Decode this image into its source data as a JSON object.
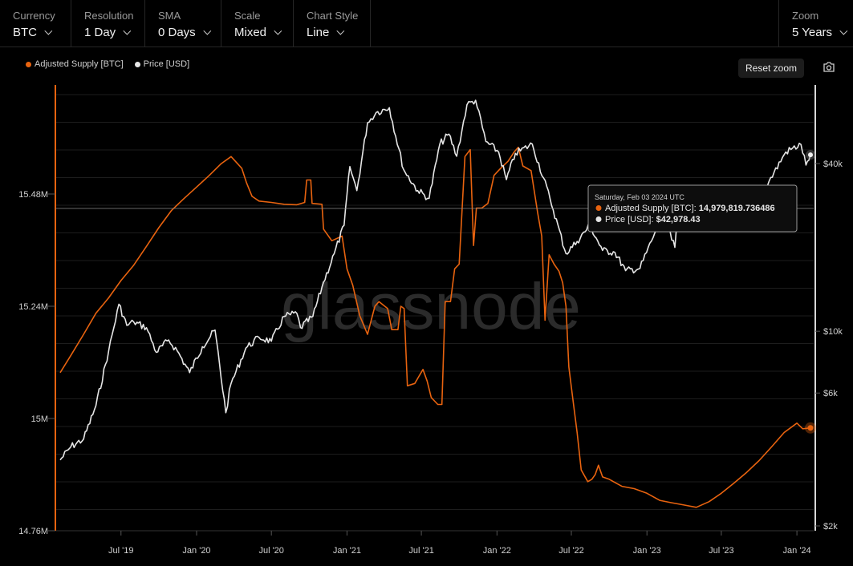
{
  "toolbar": {
    "currency": {
      "label": "Currency",
      "value": "BTC"
    },
    "resolution": {
      "label": "Resolution",
      "value": "1 Day"
    },
    "sma": {
      "label": "SMA",
      "value": "0 Days"
    },
    "scale": {
      "label": "Scale",
      "value": "Mixed"
    },
    "chart_style": {
      "label": "Chart Style",
      "value": "Line"
    },
    "zoom": {
      "label": "Zoom",
      "value": "5 Years"
    }
  },
  "reset_zoom_label": "Reset zoom",
  "icons": {
    "camera": "camera-icon",
    "chevron": "chevron-down-icon"
  },
  "watermark": "glassnode",
  "colors": {
    "supply": "#e8630f",
    "price": "#e6e6e6",
    "background": "#000000"
  },
  "tooltip": {
    "date": "Saturday, Feb 03 2024 UTC",
    "rows": [
      {
        "label": "Adjusted Supply [BTC]: ",
        "value": "14,979,819.736486"
      },
      {
        "label": "Price [USD]: ",
        "value": "$42,978.43"
      }
    ]
  },
  "chart_data": {
    "type": "line",
    "title": "",
    "x_ticks": [
      "Jul '19",
      "Jan '20",
      "Jul '20",
      "Jan '21",
      "Jul '21",
      "Jan '22",
      "Jul '22",
      "Jan '23",
      "Jul '23",
      "Jan '24"
    ],
    "x_tick_dates": [
      "2019-07-01",
      "2020-01-01",
      "2020-07-01",
      "2021-01-01",
      "2021-07-01",
      "2022-01-01",
      "2022-07-01",
      "2023-01-01",
      "2023-07-01",
      "2024-01-01"
    ],
    "xlim": [
      "2019-02-03",
      "2024-02-03"
    ],
    "y_left": {
      "ticks": [
        "14.76M",
        "15M",
        "15.24M",
        "15.48M"
      ],
      "tick_values": [
        14760000,
        15000000,
        15240000,
        15480000
      ],
      "ylim": [
        14760000,
        15600000
      ],
      "scale": "linear"
    },
    "y_right": {
      "ticks": [
        "$2k",
        "$6k",
        "$10k",
        "$40k"
      ],
      "tick_values": [
        2000,
        6000,
        10000,
        40000
      ],
      "scale": "log"
    },
    "grid": true,
    "legend_position": "top-left",
    "series": [
      {
        "name": "Adjusted Supply [BTC]",
        "axis": "left",
        "color": "#e8630f",
        "points": [
          [
            "2019-02-03",
            15098000
          ],
          [
            "2019-03-01",
            15135000
          ],
          [
            "2019-04-01",
            15180000
          ],
          [
            "2019-05-01",
            15225000
          ],
          [
            "2019-06-01",
            15258000
          ],
          [
            "2019-07-01",
            15295000
          ],
          [
            "2019-08-01",
            15328000
          ],
          [
            "2019-09-01",
            15368000
          ],
          [
            "2019-10-01",
            15408000
          ],
          [
            "2019-11-01",
            15445000
          ],
          [
            "2019-12-01",
            15470000
          ],
          [
            "2020-01-01",
            15495000
          ],
          [
            "2020-02-01",
            15520000
          ],
          [
            "2020-03-01",
            15545000
          ],
          [
            "2020-03-25",
            15560000
          ],
          [
            "2020-04-20",
            15535000
          ],
          [
            "2020-05-01",
            15505000
          ],
          [
            "2020-05-15",
            15475000
          ],
          [
            "2020-06-01",
            15465000
          ],
          [
            "2020-07-01",
            15462000
          ],
          [
            "2020-08-01",
            15458000
          ],
          [
            "2020-09-01",
            15457000
          ],
          [
            "2020-09-20",
            15462000
          ],
          [
            "2020-09-25",
            15510000
          ],
          [
            "2020-10-05",
            15510000
          ],
          [
            "2020-10-08",
            15460000
          ],
          [
            "2020-11-01",
            15458000
          ],
          [
            "2020-11-05",
            15405000
          ],
          [
            "2020-11-25",
            15380000
          ],
          [
            "2020-12-20",
            15390000
          ],
          [
            "2021-01-01",
            15320000
          ],
          [
            "2021-01-15",
            15285000
          ],
          [
            "2021-02-01",
            15220000
          ],
          [
            "2021-02-20",
            15180000
          ],
          [
            "2021-03-10",
            15240000
          ],
          [
            "2021-03-20",
            15250000
          ],
          [
            "2021-04-10",
            15235000
          ],
          [
            "2021-04-20",
            15190000
          ],
          [
            "2021-05-05",
            15190000
          ],
          [
            "2021-05-12",
            15240000
          ],
          [
            "2021-05-20",
            15235000
          ],
          [
            "2021-05-28",
            15070000
          ],
          [
            "2021-06-15",
            15075000
          ],
          [
            "2021-06-25",
            15090000
          ],
          [
            "2021-07-05",
            15105000
          ],
          [
            "2021-07-15",
            15080000
          ],
          [
            "2021-07-25",
            15045000
          ],
          [
            "2021-08-10",
            15030000
          ],
          [
            "2021-08-20",
            15030000
          ],
          [
            "2021-08-28",
            15250000
          ],
          [
            "2021-09-10",
            15250000
          ],
          [
            "2021-09-20",
            15320000
          ],
          [
            "2021-10-01",
            15330000
          ],
          [
            "2021-10-15",
            15560000
          ],
          [
            "2021-10-28",
            15575000
          ],
          [
            "2021-11-05",
            15370000
          ],
          [
            "2021-11-12",
            15450000
          ],
          [
            "2021-11-25",
            15450000
          ],
          [
            "2021-12-10",
            15460000
          ],
          [
            "2021-12-25",
            15520000
          ],
          [
            "2022-01-10",
            15535000
          ],
          [
            "2022-01-28",
            15550000
          ],
          [
            "2022-02-12",
            15570000
          ],
          [
            "2022-02-22",
            15580000
          ],
          [
            "2022-03-05",
            15540000
          ],
          [
            "2022-03-25",
            15530000
          ],
          [
            "2022-04-10",
            15440000
          ],
          [
            "2022-04-20",
            15390000
          ],
          [
            "2022-04-28",
            15210000
          ],
          [
            "2022-05-08",
            15350000
          ],
          [
            "2022-05-20",
            15330000
          ],
          [
            "2022-06-01",
            15315000
          ],
          [
            "2022-06-10",
            15290000
          ],
          [
            "2022-06-18",
            15240000
          ],
          [
            "2022-06-25",
            15110000
          ],
          [
            "2022-07-05",
            15040000
          ],
          [
            "2022-07-15",
            14970000
          ],
          [
            "2022-07-25",
            14890000
          ],
          [
            "2022-08-10",
            14865000
          ],
          [
            "2022-08-20",
            14870000
          ],
          [
            "2022-08-28",
            14880000
          ],
          [
            "2022-09-05",
            14900000
          ],
          [
            "2022-09-15",
            14875000
          ],
          [
            "2022-10-01",
            14870000
          ],
          [
            "2022-11-01",
            14855000
          ],
          [
            "2022-12-01",
            14850000
          ],
          [
            "2023-01-01",
            14840000
          ],
          [
            "2023-02-01",
            14825000
          ],
          [
            "2023-03-01",
            14820000
          ],
          [
            "2023-04-01",
            14815000
          ],
          [
            "2023-05-01",
            14810000
          ],
          [
            "2023-06-01",
            14822000
          ],
          [
            "2023-07-01",
            14840000
          ],
          [
            "2023-08-01",
            14862000
          ],
          [
            "2023-09-01",
            14885000
          ],
          [
            "2023-10-01",
            14910000
          ],
          [
            "2023-11-01",
            14940000
          ],
          [
            "2023-12-01",
            14970000
          ],
          [
            "2024-01-01",
            14990000
          ],
          [
            "2024-01-15",
            14978000
          ],
          [
            "2024-02-03",
            14979820
          ]
        ]
      },
      {
        "name": "Price [USD]",
        "axis": "right",
        "color": "#e6e6e6",
        "points": [
          [
            "2019-02-03",
            3450
          ],
          [
            "2019-03-01",
            3850
          ],
          [
            "2019-04-01",
            4100
          ],
          [
            "2019-05-01",
            5400
          ],
          [
            "2019-06-01",
            8500
          ],
          [
            "2019-06-26",
            12500
          ],
          [
            "2019-07-15",
            10500
          ],
          [
            "2019-08-01",
            10800
          ],
          [
            "2019-09-01",
            10300
          ],
          [
            "2019-09-25",
            8400
          ],
          [
            "2019-10-25",
            9300
          ],
          [
            "2019-11-15",
            8500
          ],
          [
            "2019-12-15",
            7100
          ],
          [
            "2020-01-15",
            8800
          ],
          [
            "2020-02-15",
            10100
          ],
          [
            "2020-03-12",
            5100
          ],
          [
            "2020-03-25",
            6500
          ],
          [
            "2020-04-30",
            8700
          ],
          [
            "2020-06-01",
            9500
          ],
          [
            "2020-07-01",
            9200
          ],
          [
            "2020-08-01",
            11300
          ],
          [
            "2020-09-01",
            11600
          ],
          [
            "2020-09-10",
            10300
          ],
          [
            "2020-10-10",
            11300
          ],
          [
            "2020-11-05",
            15000
          ],
          [
            "2020-12-01",
            19000
          ],
          [
            "2020-12-25",
            24000
          ],
          [
            "2021-01-08",
            39000
          ],
          [
            "2021-01-25",
            32000
          ],
          [
            "2021-02-20",
            56000
          ],
          [
            "2021-03-13",
            61000
          ],
          [
            "2021-04-14",
            63500
          ],
          [
            "2021-05-19",
            38000
          ],
          [
            "2021-06-22",
            32000
          ],
          [
            "2021-07-20",
            30000
          ],
          [
            "2021-08-15",
            47000
          ],
          [
            "2021-09-06",
            51000
          ],
          [
            "2021-09-25",
            42500
          ],
          [
            "2021-10-20",
            65000
          ],
          [
            "2021-11-10",
            67500
          ],
          [
            "2021-12-05",
            48000
          ],
          [
            "2022-01-05",
            44000
          ],
          [
            "2022-01-24",
            35000
          ],
          [
            "2022-02-15",
            43500
          ],
          [
            "2022-03-28",
            47000
          ],
          [
            "2022-05-10",
            30000
          ],
          [
            "2022-06-18",
            19000
          ],
          [
            "2022-07-15",
            21000
          ],
          [
            "2022-08-15",
            24000
          ],
          [
            "2022-09-15",
            19500
          ],
          [
            "2022-10-15",
            19200
          ],
          [
            "2022-11-10",
            16500
          ],
          [
            "2022-12-15",
            16800
          ],
          [
            "2023-01-20",
            22500
          ],
          [
            "2023-02-15",
            24500
          ],
          [
            "2023-03-10",
            20000
          ],
          [
            "2023-03-20",
            28000
          ],
          [
            "2023-04-14",
            30500
          ],
          [
            "2023-06-15",
            25500
          ],
          [
            "2023-07-15",
            30500
          ],
          [
            "2023-08-20",
            26000
          ],
          [
            "2023-09-20",
            27000
          ],
          [
            "2023-10-25",
            34500
          ],
          [
            "2023-12-05",
            44000
          ],
          [
            "2024-01-11",
            46800
          ],
          [
            "2024-01-23",
            39500
          ],
          [
            "2024-02-03",
            42978
          ]
        ]
      }
    ]
  }
}
